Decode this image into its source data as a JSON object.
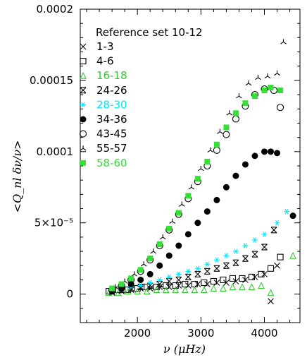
{
  "chart_data": {
    "type": "scatter",
    "title": "",
    "xlabel": "ν (μHz)",
    "ylabel": "<Q_nl δν/ν>",
    "xlim": [
      1100,
      4560
    ],
    "ylim": [
      -2e-05,
      0.0002
    ],
    "x_ticks": [
      2000,
      3000,
      4000
    ],
    "x_tick_labels": [
      "2000",
      "3000",
      "4000"
    ],
    "y_ticks": [
      0,
      5e-05,
      0.0001,
      0.00015,
      0.0002
    ],
    "y_tick_labels": [
      "0",
      "5×10⁻⁵",
      "0.0001",
      "0.00015",
      "0.0002"
    ],
    "legend": {
      "title": "Reference set 10-12",
      "placement": "top-left"
    },
    "series": [
      {
        "name": "1-3",
        "marker": "x",
        "color": "#000000",
        "x": [
          1600,
          1750,
          1900,
          2050,
          2200,
          2350,
          2500,
          2650,
          2800,
          2950,
          3100,
          3250,
          3400,
          3550,
          3700,
          3850,
          4000,
          4100,
          4200
        ],
        "y": [
          1e-06,
          2e-06,
          3e-06,
          4e-06,
          4e-06,
          5e-06,
          5e-06,
          6e-06,
          6e-06,
          7e-06,
          7e-06,
          8e-06,
          8e-06,
          9e-06,
          1e-05,
          1.2e-05,
          1.4e-05,
          -5e-06,
          2e-05
        ]
      },
      {
        "name": "4-6",
        "marker": "square-open",
        "color": "#000000",
        "x": [
          1550,
          1700,
          1850,
          2000,
          2150,
          2300,
          2450,
          2600,
          2750,
          2900,
          3050,
          3200,
          3350,
          3500,
          3650,
          3800,
          3950,
          4100,
          4250
        ],
        "y": [
          2e-06,
          3e-06,
          3e-06,
          4e-06,
          5e-06,
          5e-06,
          6e-06,
          6e-06,
          7e-06,
          7e-06,
          8e-06,
          9e-06,
          1e-05,
          1.1e-05,
          1.1e-05,
          1.2e-05,
          1.4e-05,
          1.8e-05,
          2.6e-05
        ]
      },
      {
        "name": "16-18",
        "marker": "triangle-open",
        "color": "#33cc33",
        "x": [
          1550,
          1700,
          1850,
          2000,
          2150,
          2300,
          2450,
          2600,
          2750,
          2900,
          3050,
          3200,
          3350,
          3500,
          3650,
          3800,
          3950,
          4100,
          4450
        ],
        "y": [
          1e-06,
          1e-06,
          2e-06,
          2e-06,
          2e-06,
          3e-06,
          3e-06,
          3e-06,
          3e-06,
          3e-06,
          3e-06,
          4e-06,
          4e-06,
          5e-06,
          5e-06,
          5e-06,
          6e-06,
          1e-06,
          2.7e-05
        ]
      },
      {
        "name": "24-26",
        "marker": "star-square",
        "color": "#000000",
        "x": [
          1600,
          1750,
          1900,
          2050,
          2200,
          2350,
          2500,
          2650,
          2800,
          2950,
          3100,
          3250,
          3400,
          3550,
          3700,
          3850,
          4000,
          4150
        ],
        "y": [
          2e-06,
          3e-06,
          4e-06,
          5e-06,
          6e-06,
          7e-06,
          9e-06,
          1e-05,
          1.2e-05,
          1.4e-05,
          1.6e-05,
          1.8e-05,
          2e-05,
          2.2e-05,
          2.5e-05,
          2.8e-05,
          3.3e-05,
          4.5e-05
        ]
      },
      {
        "name": "28-30",
        "marker": "asterisk",
        "color": "#00e5ff",
        "x": [
          1600,
          1750,
          1900,
          2050,
          2200,
          2350,
          2500,
          2650,
          2800,
          2950,
          3100,
          3250,
          3400,
          3550,
          3700,
          3850,
          4000,
          4200,
          4350
        ],
        "y": [
          3e-06,
          4e-06,
          5e-06,
          6e-06,
          8e-06,
          1e-05,
          1.2e-05,
          1.4e-05,
          1.6e-05,
          1.8e-05,
          2.1e-05,
          2.4e-05,
          2.7e-05,
          3e-05,
          3.4e-05,
          3.8e-05,
          4.2e-05,
          5e-05,
          5.8e-05
        ]
      },
      {
        "name": "34-36",
        "marker": "circle-filled",
        "color": "#000000",
        "x": [
          1600,
          1750,
          1900,
          2050,
          2200,
          2350,
          2500,
          2650,
          2800,
          2950,
          3100,
          3250,
          3400,
          3550,
          3700,
          3850,
          4000,
          4100,
          4200,
          4450
        ],
        "y": [
          2e-06,
          4e-06,
          7e-06,
          1e-05,
          1.4e-05,
          2e-05,
          2.7e-05,
          3.4e-05,
          4.2e-05,
          5e-05,
          5.8e-05,
          6.6e-05,
          7.5e-05,
          8.3e-05,
          9.1e-05,
          9.7e-05,
          0.0001,
          0.0001,
          9.9e-05,
          5.5e-05
        ]
      },
      {
        "name": "43-45",
        "marker": "circle-open",
        "color": "#000000",
        "x": [
          1600,
          1750,
          1900,
          2050,
          2200,
          2350,
          2500,
          2650,
          2800,
          2950,
          3100,
          3250,
          3400,
          3550,
          3700,
          3850,
          4000,
          4150,
          4250
        ],
        "y": [
          3e-06,
          6e-06,
          1e-05,
          1.6e-05,
          2.4e-05,
          3.4e-05,
          4.5e-05,
          5.6e-05,
          6.7e-05,
          7.9e-05,
          9e-05,
          0.000101,
          0.000112,
          0.000123,
          0.000132,
          0.00014,
          0.000144,
          0.000143,
          0.000131
        ]
      },
      {
        "name": "55-57",
        "marker": "tri-branch",
        "color": "#000000",
        "x": [
          1650,
          1800,
          1950,
          2100,
          2250,
          2400,
          2550,
          2700,
          2850,
          3000,
          3150,
          3300,
          3450,
          3600,
          3750,
          3900,
          4050,
          4200,
          4300
        ],
        "y": [
          5e-06,
          9e-06,
          1.4e-05,
          2.1e-05,
          3e-05,
          4e-05,
          5.1e-05,
          6.3e-05,
          7.5e-05,
          8.8e-05,
          0.000101,
          0.000114,
          0.000127,
          0.000139,
          0.000148,
          0.000152,
          0.000153,
          0.000155,
          0.000177
        ]
      },
      {
        "name": "58-60",
        "marker": "square-filled",
        "color": "#33e033",
        "x": [
          1600,
          1750,
          1900,
          2050,
          2200,
          2350,
          2500,
          2650,
          2800,
          2950,
          3100,
          3250,
          3400,
          3550,
          3700,
          3850,
          4000,
          4100,
          4250
        ],
        "y": [
          4e-06,
          7e-06,
          1.1e-05,
          1.7e-05,
          2.5e-05,
          3.5e-05,
          4.6e-05,
          5.7e-05,
          6.9e-05,
          8.1e-05,
          9.3e-05,
          0.000105,
          0.000117,
          0.000127,
          0.000134,
          0.000139,
          0.000143,
          0.000145,
          0.000143
        ]
      }
    ]
  }
}
